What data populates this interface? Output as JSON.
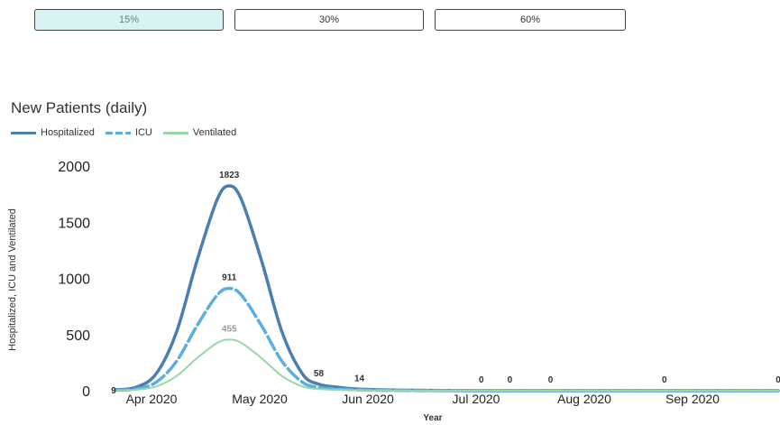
{
  "scenarios": [
    {
      "label": "15%",
      "active": true
    },
    {
      "label": "30%",
      "active": false
    },
    {
      "label": "60%",
      "active": false
    }
  ],
  "colors": {
    "hospitalized": "#4a7fb0",
    "icu": "#5aaee0",
    "ventilated": "#9ad6a8",
    "active_button": "#d9f2f2"
  },
  "chart_data": {
    "type": "line",
    "title": "New Patients (daily)",
    "xlabel": "Year",
    "ylabel": "Hospitalized, ICU and Ventilated",
    "ylim": [
      0,
      2000
    ],
    "yticks": [
      0,
      500,
      1000,
      1500,
      2000
    ],
    "xtick_labels": [
      "Apr 2020",
      "May 2020",
      "Jun 2020",
      "Jul 2020",
      "Aug 2020",
      "Sep 2020"
    ],
    "legend_position": "top-left",
    "grid": false,
    "series": [
      {
        "name": "Hospitalized",
        "color_key": "hospitalized",
        "style": "solid",
        "x": [
          0,
          5,
          10,
          15,
          20,
          25,
          28,
          31,
          36,
          41,
          46,
          50,
          55,
          60,
          70,
          80,
          90,
          100,
          110,
          120,
          130,
          140,
          150,
          163
        ],
        "values": [
          9,
          30,
          150,
          520,
          1150,
          1700,
          1823,
          1700,
          1150,
          520,
          150,
          58,
          30,
          14,
          5,
          2,
          0,
          0,
          0,
          0,
          0,
          0,
          0,
          0
        ]
      },
      {
        "name": "ICU",
        "color_key": "icu",
        "style": "dashed",
        "x": [
          0,
          5,
          10,
          15,
          20,
          25,
          28,
          31,
          36,
          41,
          46,
          50,
          55,
          60,
          70,
          80,
          90,
          100,
          110,
          120,
          130,
          140,
          150,
          163
        ],
        "values": [
          4,
          15,
          75,
          260,
          575,
          850,
          911,
          850,
          575,
          260,
          75,
          29,
          15,
          7,
          2,
          1,
          0,
          0,
          0,
          0,
          0,
          0,
          0,
          0
        ]
      },
      {
        "name": "Ventilated",
        "color_key": "ventilated",
        "style": "solid",
        "x": [
          0,
          5,
          10,
          15,
          20,
          25,
          28,
          31,
          36,
          41,
          46,
          50,
          55,
          60,
          70,
          80,
          90,
          100,
          110,
          120,
          130,
          140,
          150,
          163
        ],
        "values": [
          2,
          8,
          38,
          130,
          288,
          425,
          455,
          425,
          288,
          130,
          38,
          15,
          8,
          4,
          1,
          0,
          0,
          0,
          0,
          0,
          0,
          0,
          0,
          0
        ]
      }
    ],
    "data_labels": [
      {
        "x": 0,
        "y": 9,
        "text": "9"
      },
      {
        "x": 28,
        "y": 1823,
        "text": "1823"
      },
      {
        "x": 28,
        "y": 911,
        "text": "911"
      },
      {
        "x": 28,
        "y": 455,
        "text": "455"
      },
      {
        "x": 50,
        "y": 58,
        "text": "58"
      },
      {
        "x": 60,
        "y": 14,
        "text": "14"
      },
      {
        "x": 90,
        "y": 0,
        "text": "0"
      },
      {
        "x": 97,
        "y": 0,
        "text": "0"
      },
      {
        "x": 107,
        "y": 0,
        "text": "0"
      },
      {
        "x": 135,
        "y": 0,
        "text": "0"
      },
      {
        "x": 163,
        "y": 0,
        "text": "0"
      }
    ]
  }
}
